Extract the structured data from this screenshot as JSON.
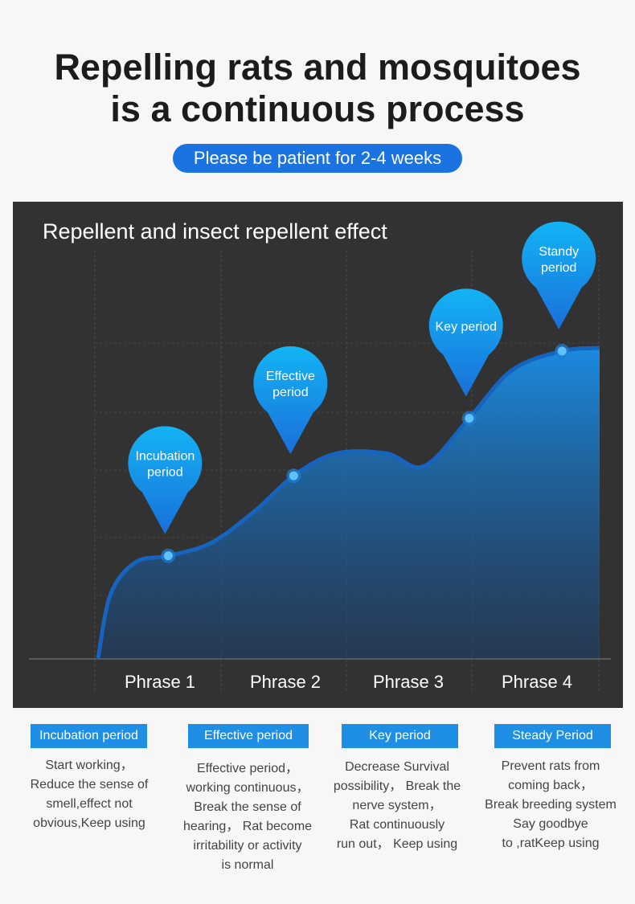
{
  "headline": {
    "line1": "Repelling rats and mosquitoes",
    "line2": "is a continuous process"
  },
  "badge": "Please be patient for 2-4 weeks",
  "colors": {
    "accent": "#1a73e0",
    "panel": "#323232",
    "bubble_top": "#13b4f5",
    "bubble_bottom": "#1a6fd9",
    "curve": "#1565c0"
  },
  "chart_data": {
    "type": "area",
    "title": "Repellent and insect repellent effect",
    "categories": [
      "Phrase 1",
      "Phrase 2",
      "Phrase 3",
      "Phrase 4"
    ],
    "milestones": [
      {
        "label": "Incubation period",
        "lines": [
          "Incubation",
          "period"
        ],
        "x": 0.56,
        "y": 0.32
      },
      {
        "label": "Effective period",
        "lines": [
          "Effective",
          "period"
        ],
        "x": 1.56,
        "y": 0.57
      },
      {
        "label": "Key period",
        "lines": [
          "Key period"
        ],
        "x": 2.96,
        "y": 0.75
      },
      {
        "label": "Standy period",
        "lines": [
          "Standy",
          "period"
        ],
        "x": 3.7,
        "y": 0.96
      }
    ],
    "curve": [
      [
        0.0,
        0.0
      ],
      [
        0.1,
        0.2
      ],
      [
        0.3,
        0.3
      ],
      [
        0.56,
        0.32
      ],
      [
        0.9,
        0.36
      ],
      [
        1.25,
        0.46
      ],
      [
        1.56,
        0.57
      ],
      [
        1.9,
        0.64
      ],
      [
        2.3,
        0.64
      ],
      [
        2.6,
        0.6
      ],
      [
        2.96,
        0.75
      ],
      [
        3.3,
        0.9
      ],
      [
        3.7,
        0.96
      ],
      [
        4.0,
        0.97
      ]
    ],
    "xlim": [
      0,
      4
    ],
    "ylim": [
      0,
      1
    ]
  },
  "stages": [
    {
      "tag": "Incubation period",
      "lines": [
        "Start working，",
        "Reduce the sense of",
        "smell,effect not",
        "obvious,Keep using"
      ]
    },
    {
      "tag": "Effective period",
      "lines": [
        "Effective period，",
        "working continuous，",
        "Break the sense of",
        "hearing， Rat become",
        "irritability or activity",
        "is normal"
      ]
    },
    {
      "tag": "Key period",
      "lines": [
        "Decrease Survival",
        "possibility， Break the",
        "nerve system，",
        "Rat continuously",
        "run out， Keep using"
      ]
    },
    {
      "tag": "Steady Period",
      "lines": [
        "Prevent rats from",
        "coming back，",
        "Break breeding system",
        "Say goodbye",
        "to ,ratKeep using"
      ]
    }
  ]
}
